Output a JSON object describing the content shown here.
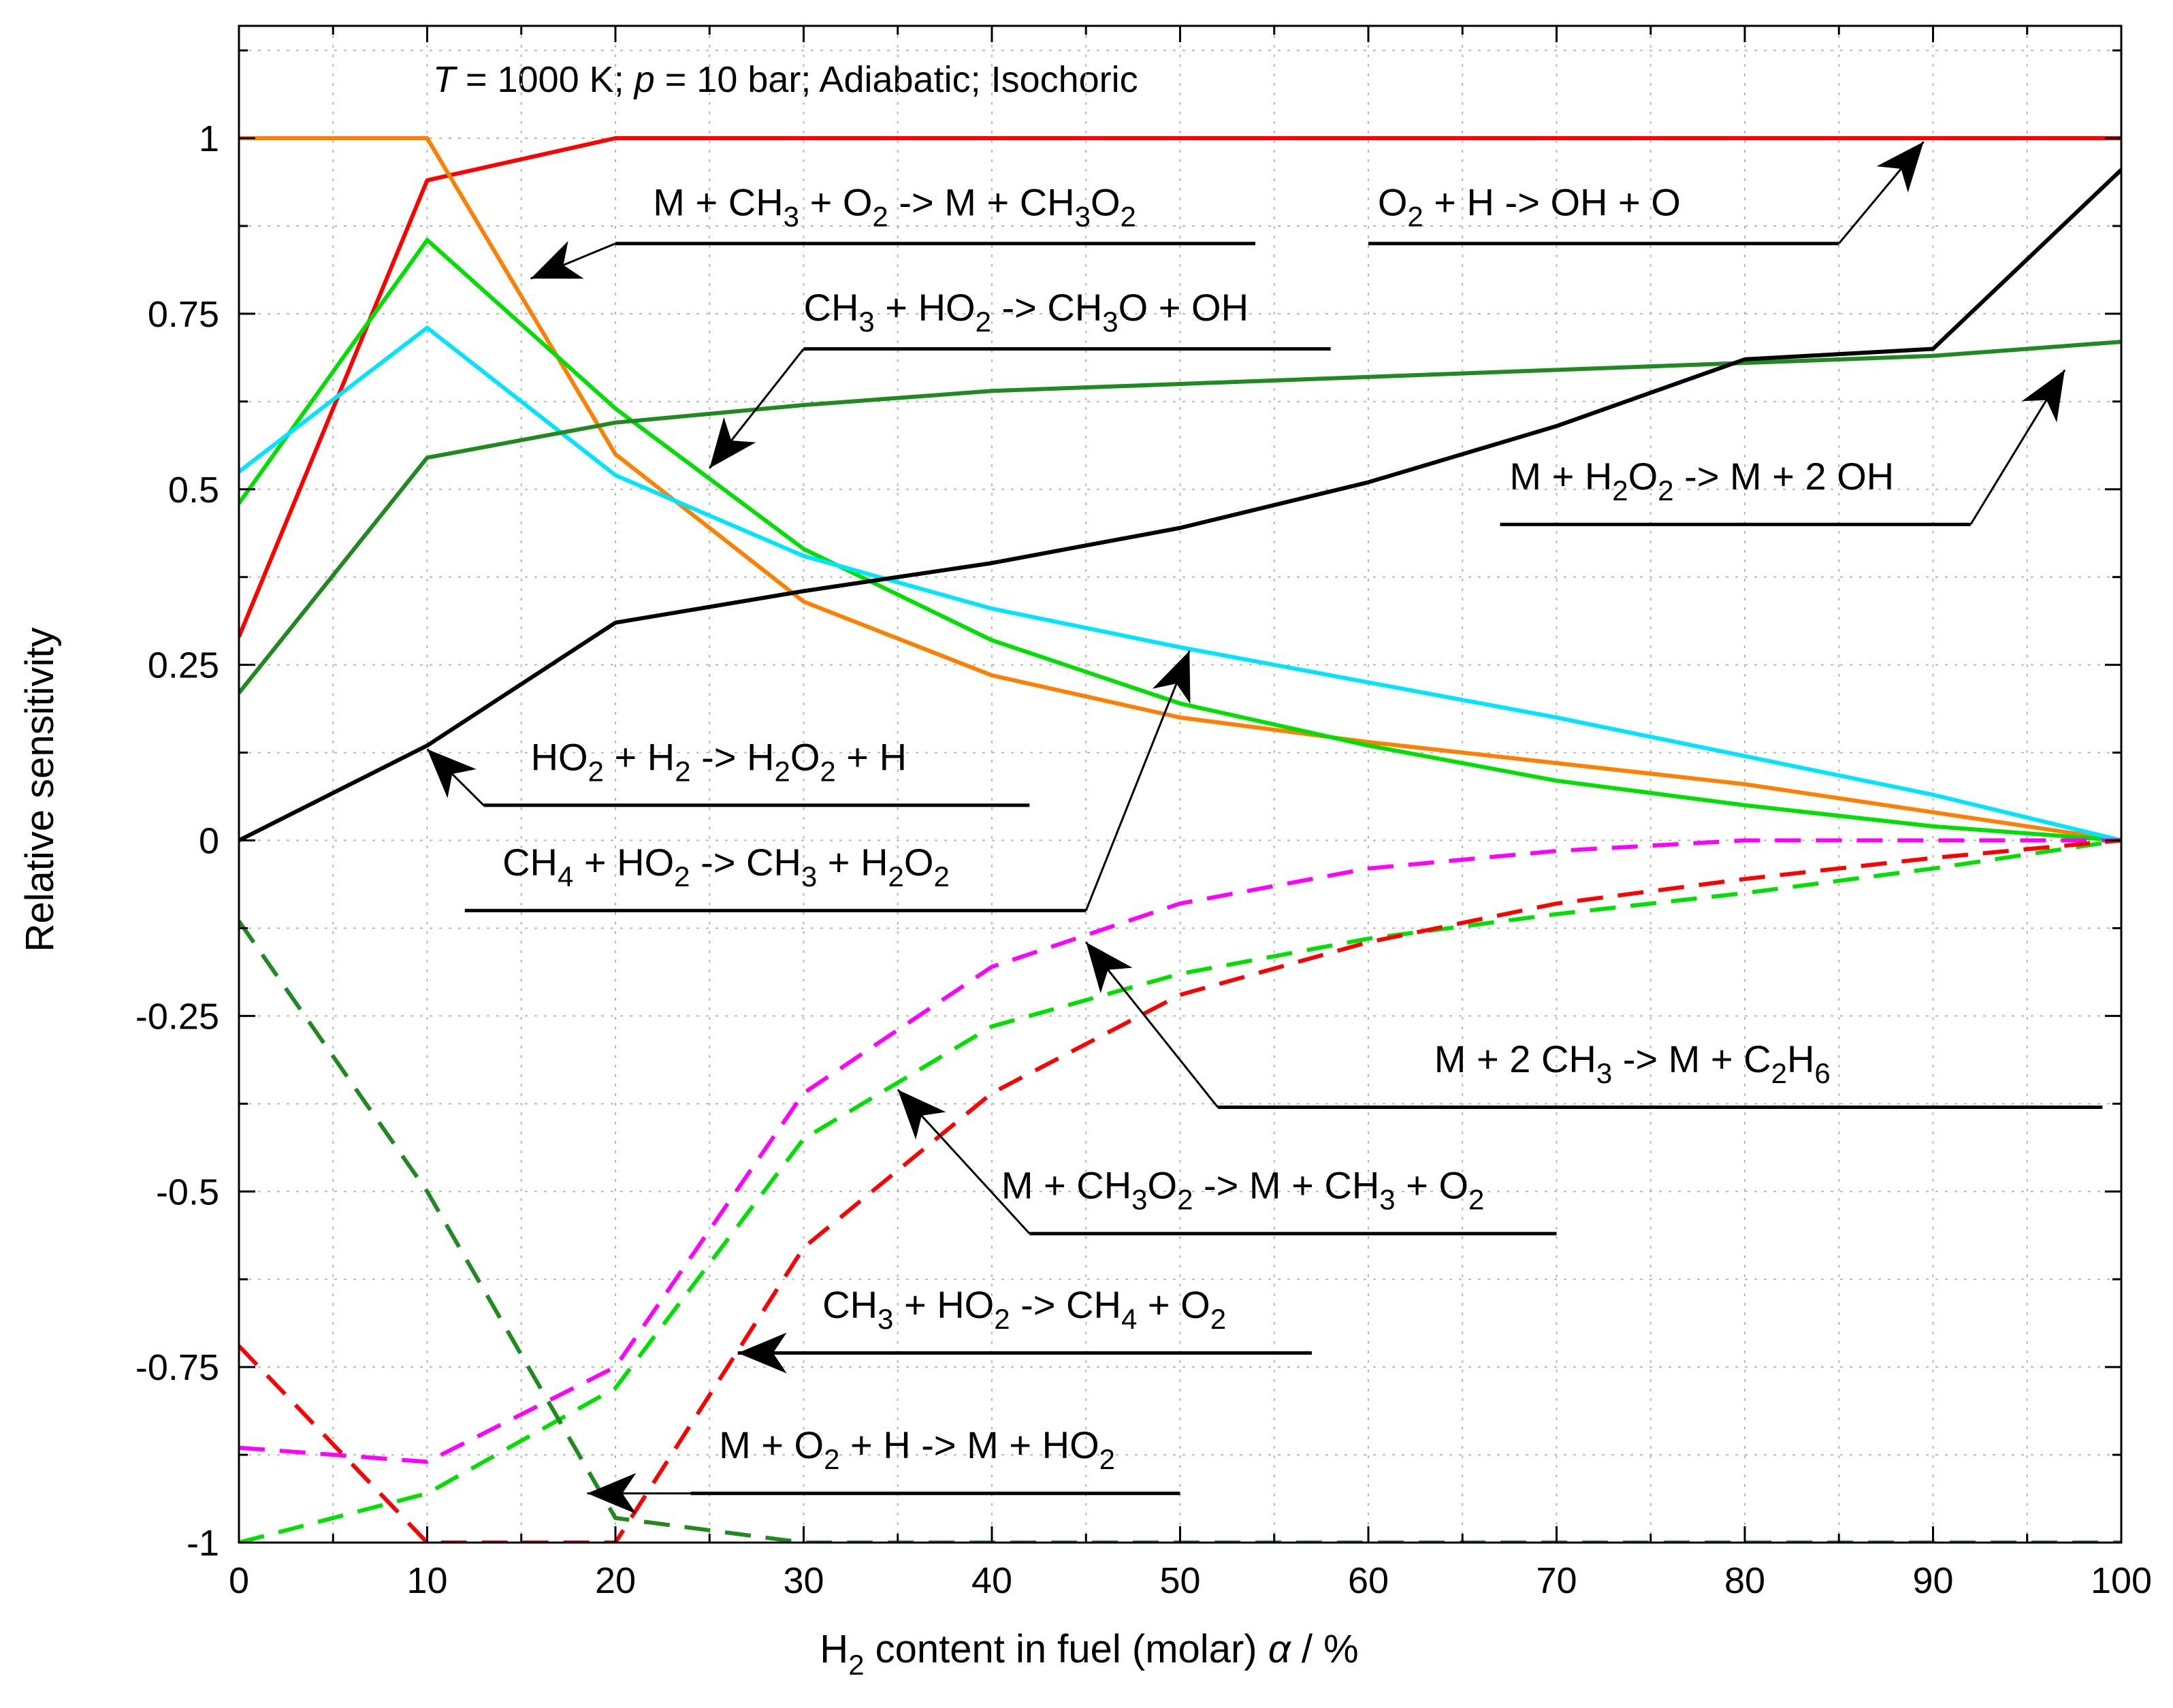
{
  "chart_data": {
    "type": "line",
    "condition_label": {
      "T_symbol": "T",
      "T_text": " = 1000 K; ",
      "p_symbol": "p",
      "p_text": " = 10 bar; Adiabatic; Isochoric"
    },
    "xlabel": {
      "pre": "H",
      "sub": "2",
      "mid": " content in fuel (molar) ",
      "symbol": "α",
      "post": " / %"
    },
    "ylabel": "Relative sensitivity",
    "xlim": [
      0,
      100
    ],
    "ylim": [
      -1,
      1.15
    ],
    "grid": true,
    "x_ticks": [
      {
        "value": 0,
        "label": "0"
      },
      {
        "value": 10,
        "label": "10"
      },
      {
        "value": 20,
        "label": "20"
      },
      {
        "value": 30,
        "label": "30"
      },
      {
        "value": 40,
        "label": "40"
      },
      {
        "value": 50,
        "label": "50"
      },
      {
        "value": 60,
        "label": "60"
      },
      {
        "value": 70,
        "label": "70"
      },
      {
        "value": 80,
        "label": "80"
      },
      {
        "value": 90,
        "label": "90"
      },
      {
        "value": 100,
        "label": "100"
      }
    ],
    "y_ticks": [
      {
        "value": 1,
        "label": "1"
      },
      {
        "value": 0.75,
        "label": "0.75"
      },
      {
        "value": 0.5,
        "label": "0.5"
      },
      {
        "value": 0.25,
        "label": "0.25"
      },
      {
        "value": 0,
        "label": "0"
      },
      {
        "value": -0.25,
        "label": "-0.25"
      },
      {
        "value": -0.5,
        "label": "-0.5"
      },
      {
        "value": -0.75,
        "label": "-0.75"
      },
      {
        "value": -1,
        "label": "-1"
      }
    ],
    "series": [
      {
        "name": "O2 + H -> OH + O",
        "color": "#ff0000",
        "dash": false,
        "x": [
          0,
          10,
          20,
          30,
          40,
          50,
          60,
          70,
          80,
          90,
          100
        ],
        "y": [
          0.29,
          0.94,
          1.0,
          1.0,
          1.0,
          1.0,
          1.0,
          1.0,
          1.0,
          1.0,
          1.0
        ]
      },
      {
        "name": "M + CH3 + O2 -> M + CH3O2",
        "color": "#ff8000",
        "dash": false,
        "x": [
          0,
          10,
          20,
          30,
          40,
          50,
          60,
          70,
          80,
          90,
          100
        ],
        "y": [
          1.0,
          1.0,
          0.55,
          0.34,
          0.235,
          0.175,
          0.14,
          0.11,
          0.08,
          0.04,
          0.0
        ]
      },
      {
        "name": "CH3 + HO2 -> CH3O + OH",
        "color": "#00e000",
        "dash": false,
        "x": [
          0,
          10,
          20,
          30,
          40,
          50,
          60,
          70,
          80,
          90,
          100
        ],
        "y": [
          0.48,
          0.855,
          0.615,
          0.415,
          0.285,
          0.195,
          0.135,
          0.085,
          0.05,
          0.02,
          0.0
        ]
      },
      {
        "name": "CH4 + HO2 -> CH3 + H2O2",
        "color": "#00e5ff",
        "dash": false,
        "x": [
          0,
          10,
          20,
          30,
          40,
          50,
          60,
          70,
          80,
          90,
          100
        ],
        "y": [
          0.525,
          0.73,
          0.52,
          0.405,
          0.33,
          0.275,
          0.225,
          0.175,
          0.12,
          0.065,
          0.0
        ]
      },
      {
        "name": "M + H2O2 -> M + 2 OH",
        "color": "#1f8a1f",
        "dash": false,
        "x": [
          0,
          10,
          20,
          30,
          40,
          50,
          60,
          70,
          80,
          90,
          100
        ],
        "y": [
          0.21,
          0.545,
          0.595,
          0.62,
          0.64,
          0.65,
          0.66,
          0.67,
          0.68,
          0.69,
          0.71
        ]
      },
      {
        "name": "HO2 + H2 -> H2O2 + H",
        "color": "#000000",
        "dash": false,
        "x": [
          0,
          10,
          20,
          30,
          40,
          50,
          60,
          70,
          80,
          90,
          100
        ],
        "y": [
          0.0,
          0.135,
          0.31,
          0.355,
          0.395,
          0.445,
          0.51,
          0.59,
          0.685,
          0.7,
          0.955
        ]
      },
      {
        "name": "M + 2 CH3 -> M + C2H6",
        "color": "#ff00ff",
        "dash": true,
        "x": [
          0,
          10,
          20,
          30,
          40,
          50,
          60,
          70,
          80,
          90,
          100
        ],
        "y": [
          -0.865,
          -0.885,
          -0.75,
          -0.36,
          -0.18,
          -0.09,
          -0.04,
          -0.015,
          0.0,
          0.0,
          0.0
        ]
      },
      {
        "name": "M + CH3O2 -> M + CH3 + O2",
        "color": "#00e000",
        "dash": true,
        "x": [
          0,
          10,
          20,
          30,
          40,
          50,
          60,
          70,
          80,
          90,
          100
        ],
        "y": [
          -1.0,
          -0.93,
          -0.78,
          -0.425,
          -0.265,
          -0.19,
          -0.14,
          -0.105,
          -0.075,
          -0.04,
          0.0
        ]
      },
      {
        "name": "CH3 + HO2 -> CH4 + O2",
        "color": "#ff0000",
        "dash": true,
        "x": [
          0,
          10,
          20,
          30,
          40,
          50,
          60,
          70,
          80,
          90,
          100
        ],
        "y": [
          -0.72,
          -1.0,
          -1.0,
          -0.58,
          -0.36,
          -0.22,
          -0.145,
          -0.09,
          -0.055,
          -0.025,
          0.0
        ]
      },
      {
        "name": "M + O2 + H -> M + HO2",
        "color": "#1f8a1f",
        "dash": true,
        "x": [
          0,
          10,
          20,
          30,
          40,
          50,
          60,
          70,
          80,
          90,
          100
        ],
        "y": [
          -0.115,
          -0.5,
          -0.965,
          -1.0,
          -1.0,
          -1.0,
          -1.0,
          -1.0,
          -1.0,
          -1.0,
          -1.0
        ]
      }
    ],
    "annotations": [
      {
        "name": "anno-m-ch3-o2",
        "parts": [
          [
            "M + CH",
            ""
          ],
          [
            "3",
            "sub"
          ],
          [
            " + O",
            ""
          ],
          [
            "2",
            "sub"
          ],
          [
            " -> M + CH",
            ""
          ],
          [
            "3",
            "sub"
          ],
          [
            "O",
            ""
          ],
          [
            "2",
            "sub"
          ]
        ],
        "text_at": [
          22,
          0.89
        ],
        "line": [
          [
            54,
            0.85
          ],
          [
            20,
            0.85
          ]
        ],
        "arrow_to": [
          15.5,
          0.8
        ]
      },
      {
        "name": "anno-o2-h",
        "parts": [
          [
            "O",
            ""
          ],
          [
            "2",
            "sub"
          ],
          [
            " + H -> OH + O",
            ""
          ]
        ],
        "text_at": [
          60.5,
          0.89
        ],
        "line": [
          [
            60,
            0.85
          ],
          [
            85,
            0.85
          ]
        ],
        "arrow_to": [
          89.5,
          0.995
        ]
      },
      {
        "name": "anno-ch3-ho2-ch3o",
        "parts": [
          [
            "CH",
            ""
          ],
          [
            "3",
            "sub"
          ],
          [
            " + HO",
            ""
          ],
          [
            "2",
            "sub"
          ],
          [
            " -> CH",
            ""
          ],
          [
            "3",
            "sub"
          ],
          [
            "O + OH",
            ""
          ]
        ],
        "text_at": [
          30,
          0.74
        ],
        "line": [
          [
            58,
            0.7
          ],
          [
            30,
            0.7
          ]
        ],
        "arrow_to": [
          25,
          0.53
        ]
      },
      {
        "name": "anno-m-h2o2",
        "parts": [
          [
            "M + H",
            ""
          ],
          [
            "2",
            "sub"
          ],
          [
            "O",
            ""
          ],
          [
            "2",
            "sub"
          ],
          [
            " -> M + 2 OH",
            ""
          ]
        ],
        "text_at": [
          67.5,
          0.5
        ],
        "line": [
          [
            67,
            0.45
          ],
          [
            92,
            0.45
          ]
        ],
        "arrow_to": [
          97,
          0.67
        ]
      },
      {
        "name": "anno-ho2-h2",
        "parts": [
          [
            "HO",
            ""
          ],
          [
            "2",
            "sub"
          ],
          [
            " + H",
            ""
          ],
          [
            "2",
            "sub"
          ],
          [
            " -> H",
            ""
          ],
          [
            "2",
            "sub"
          ],
          [
            "O",
            ""
          ],
          [
            "2",
            "sub"
          ],
          [
            " + H",
            ""
          ]
        ],
        "text_at": [
          15.5,
          0.1
        ],
        "line": [
          [
            42,
            0.05
          ],
          [
            13,
            0.05
          ]
        ],
        "arrow_to": [
          10,
          0.13
        ]
      },
      {
        "name": "anno-ch4-ho2",
        "parts": [
          [
            "CH",
            ""
          ],
          [
            "4",
            "sub"
          ],
          [
            " + HO",
            ""
          ],
          [
            "2",
            "sub"
          ],
          [
            " -> CH",
            ""
          ],
          [
            "3",
            "sub"
          ],
          [
            " + H",
            ""
          ],
          [
            "2",
            "sub"
          ],
          [
            "O",
            ""
          ],
          [
            "2",
            "sub"
          ]
        ],
        "text_at": [
          14,
          -0.05
        ],
        "line": [
          [
            12,
            -0.1
          ],
          [
            45,
            -0.1
          ]
        ],
        "arrow_to": [
          50.5,
          0.27
        ]
      },
      {
        "name": "anno-m-2ch3",
        "parts": [
          [
            "M + 2 CH",
            ""
          ],
          [
            "3",
            "sub"
          ],
          [
            " -> M + C",
            ""
          ],
          [
            "2",
            "sub"
          ],
          [
            "H",
            ""
          ],
          [
            "6",
            "sub"
          ]
        ],
        "text_at": [
          63.5,
          -0.33
        ],
        "line": [
          [
            99,
            -0.38
          ],
          [
            52,
            -0.38
          ]
        ],
        "arrow_to": [
          45,
          -0.145
        ]
      },
      {
        "name": "anno-m-ch3o2",
        "parts": [
          [
            "M + CH",
            ""
          ],
          [
            "3",
            "sub"
          ],
          [
            "O",
            ""
          ],
          [
            "2",
            "sub"
          ],
          [
            " -> M + CH",
            ""
          ],
          [
            "3",
            "sub"
          ],
          [
            " + O",
            ""
          ],
          [
            "2",
            "sub"
          ]
        ],
        "text_at": [
          40.5,
          -0.51
        ],
        "line": [
          [
            70,
            -0.56
          ],
          [
            42,
            -0.56
          ]
        ],
        "arrow_to": [
          35,
          -0.355
        ]
      },
      {
        "name": "anno-ch3-ho2-ch4",
        "parts": [
          [
            "CH",
            ""
          ],
          [
            "3",
            "sub"
          ],
          [
            " + HO",
            ""
          ],
          [
            "2",
            "sub"
          ],
          [
            " -> CH",
            ""
          ],
          [
            "4",
            "sub"
          ],
          [
            " + O",
            ""
          ],
          [
            "2",
            "sub"
          ]
        ],
        "text_at": [
          31,
          -0.68
        ],
        "line": [
          [
            57,
            -0.73
          ],
          [
            26.5,
            -0.73
          ]
        ],
        "arrow_to": [
          26.5,
          -0.73
        ]
      },
      {
        "name": "anno-m-o2-h",
        "parts": [
          [
            "M + O",
            ""
          ],
          [
            "2",
            "sub"
          ],
          [
            " + H -> M + HO",
            ""
          ],
          [
            "2",
            "sub"
          ]
        ],
        "text_at": [
          25.5,
          -0.88
        ],
        "line": [
          [
            50,
            -0.93
          ],
          [
            24,
            -0.93
          ]
        ],
        "arrow_to": [
          18.5,
          -0.93
        ]
      }
    ]
  }
}
